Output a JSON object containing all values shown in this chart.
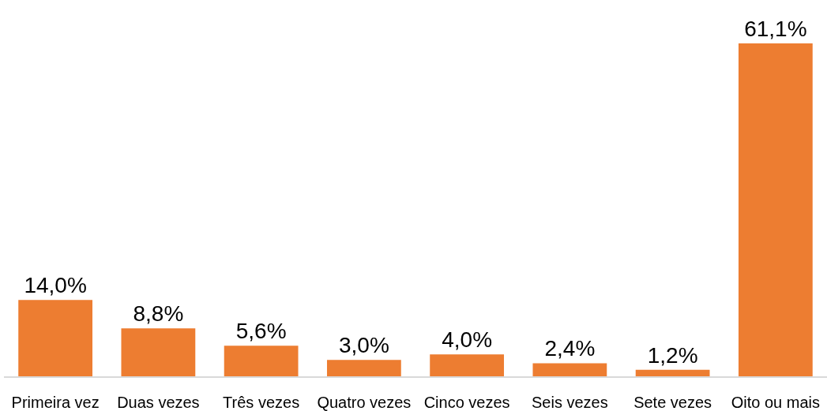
{
  "chart_data": {
    "type": "bar",
    "categories": [
      "Primeira vez",
      "Duas vezes",
      "Três vezes",
      "Quatro vezes",
      "Cinco vezes",
      "Seis vezes",
      "Sete vezes",
      "Oito ou mais"
    ],
    "values": [
      14.0,
      8.8,
      5.6,
      3.0,
      4.0,
      2.4,
      1.2,
      61.1
    ],
    "value_labels": [
      "14,0%",
      "8,8%",
      "5,6%",
      "3,0%",
      "4,0%",
      "2,4%",
      "1,2%",
      "61,1%"
    ],
    "color": "#ed7d31"
  }
}
